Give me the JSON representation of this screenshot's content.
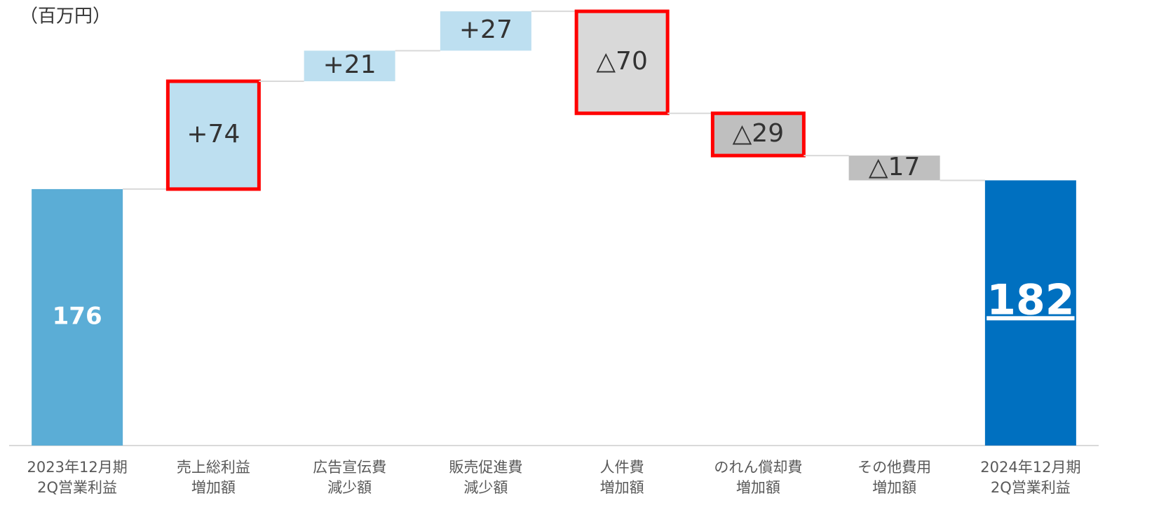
{
  "chart_data": {
    "type": "waterfall",
    "unit_label": "（百万円）",
    "categories": [
      [
        "2023年12月期",
        "2Q営業利益"
      ],
      [
        "売上総利益",
        "増加額"
      ],
      [
        "広告宣伝費",
        "減少額"
      ],
      [
        "販売促進費",
        "減少額"
      ],
      [
        "人件費",
        "増加額"
      ],
      [
        "のれん償却費",
        "増加額"
      ],
      [
        "その他費用",
        "増加額"
      ],
      [
        "2024年12月期",
        "2Q営業利益"
      ]
    ],
    "values": [
      176,
      74,
      21,
      27,
      -70,
      -29,
      -17,
      182
    ],
    "value_labels": [
      "176",
      "+74",
      "+21",
      "+27",
      "△70",
      "△29",
      "△17",
      "182"
    ],
    "is_total": [
      true,
      false,
      false,
      false,
      false,
      false,
      false,
      true
    ],
    "colors": [
      "#5badd6",
      "#bddff0",
      "#bddff0",
      "#bddff0",
      "#d9d9d9",
      "#bfbfbf",
      "#bfbfbf",
      "#0070c0"
    ],
    "highlight": [
      false,
      true,
      false,
      false,
      true,
      true,
      false,
      false
    ],
    "highlight_color": "#ff0000",
    "ylim": [
      0,
      300
    ]
  }
}
